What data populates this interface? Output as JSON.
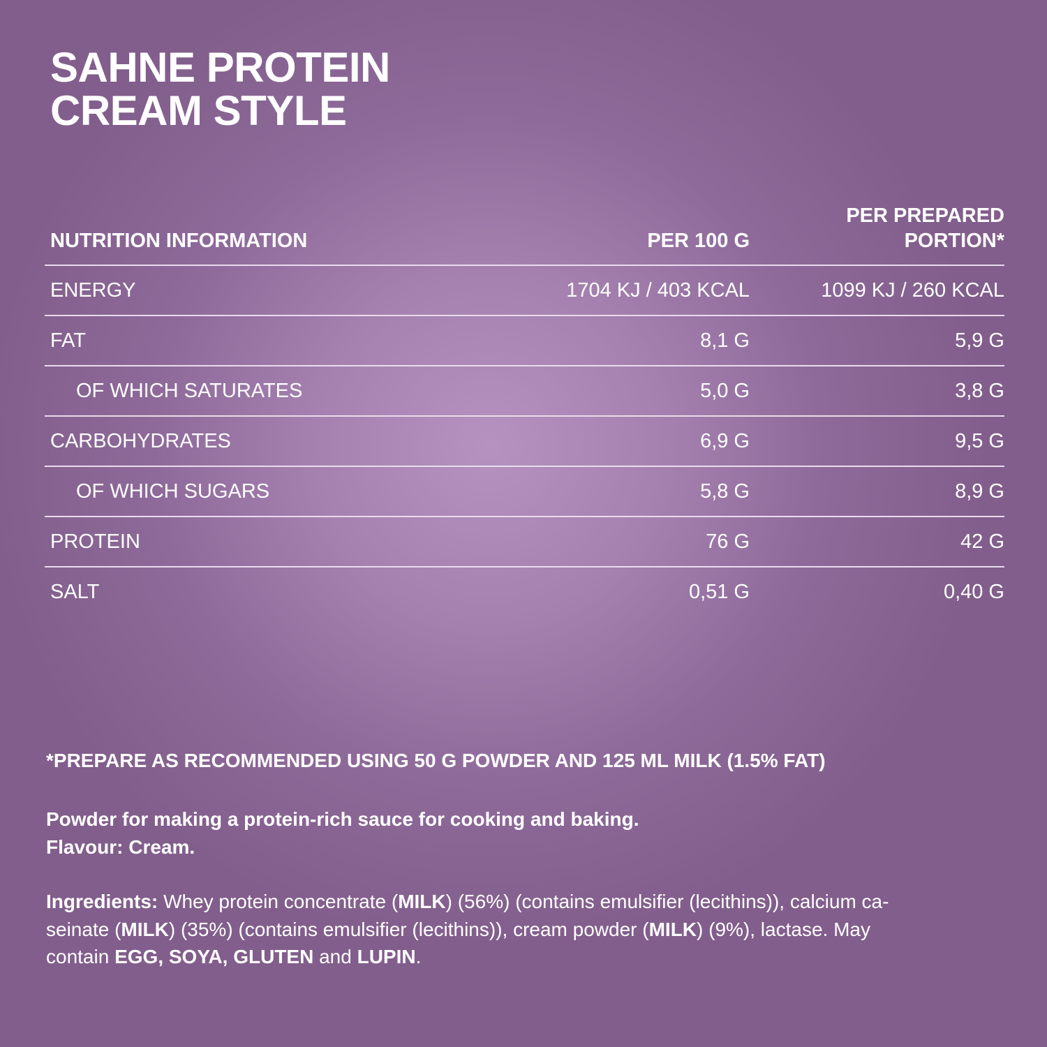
{
  "title": {
    "line1": "SAHNE PROTEIN",
    "line2": "CREAM STYLE"
  },
  "table": {
    "headers": [
      "NUTRITION INFORMATION",
      "PER 100 G",
      "PER PREPARED",
      "PORTION*"
    ],
    "rows": [
      {
        "label": "ENERGY",
        "per100": "1704 KJ / 403 KCAL",
        "portion": "1099 KJ / 260 KCAL",
        "indent": false
      },
      {
        "label": "FAT",
        "per100": "8,1 G",
        "portion": "5,9 G",
        "indent": false
      },
      {
        "label": "OF WHICH SATURATES",
        "per100": "5,0 G",
        "portion": "3,8 G",
        "indent": true
      },
      {
        "label": "CARBOHYDRATES",
        "per100": "6,9 G",
        "portion": "9,5 G",
        "indent": false
      },
      {
        "label": "OF WHICH SUGARS",
        "per100": "5,8 G",
        "portion": "8,9 G",
        "indent": true
      },
      {
        "label": "PROTEIN",
        "per100": "76 G",
        "portion": "42 G",
        "indent": false
      },
      {
        "label": "SALT",
        "per100": "0,51 G",
        "portion": "0,40 G",
        "indent": false
      }
    ]
  },
  "footnote": "*PREPARE AS RECOMMENDED USING 50 G POWDER AND 125 ML MILK (1.5% FAT)",
  "description": {
    "line1": "Powder for making a protein-rich sauce for cooking and baking.",
    "line2": "Flavour: Cream."
  },
  "ingredients": [
    [
      {
        "t": "Ingredients:",
        "b": true
      },
      {
        "t": " Whey protein concentrate ("
      },
      {
        "t": "MILK",
        "b": true
      },
      {
        "t": ") (56%) (contains emulsifier (lecithins)), calcium ca-"
      }
    ],
    [
      {
        "t": "seinate ("
      },
      {
        "t": "MILK",
        "b": true
      },
      {
        "t": ") (35%) (contains emulsifier (lecithins)), cream powder ("
      },
      {
        "t": "MILK",
        "b": true
      },
      {
        "t": ") (9%), lactase. May"
      }
    ],
    [
      {
        "t": "contain "
      },
      {
        "t": "EGG, SOYA, GLUTEN",
        "b": true
      },
      {
        "t": " and "
      },
      {
        "t": "LUPIN",
        "b": true
      },
      {
        "t": "."
      }
    ]
  ],
  "colors": {
    "background": "#825e8c",
    "center_glow": "#b592bf",
    "text": "#ffffff"
  }
}
